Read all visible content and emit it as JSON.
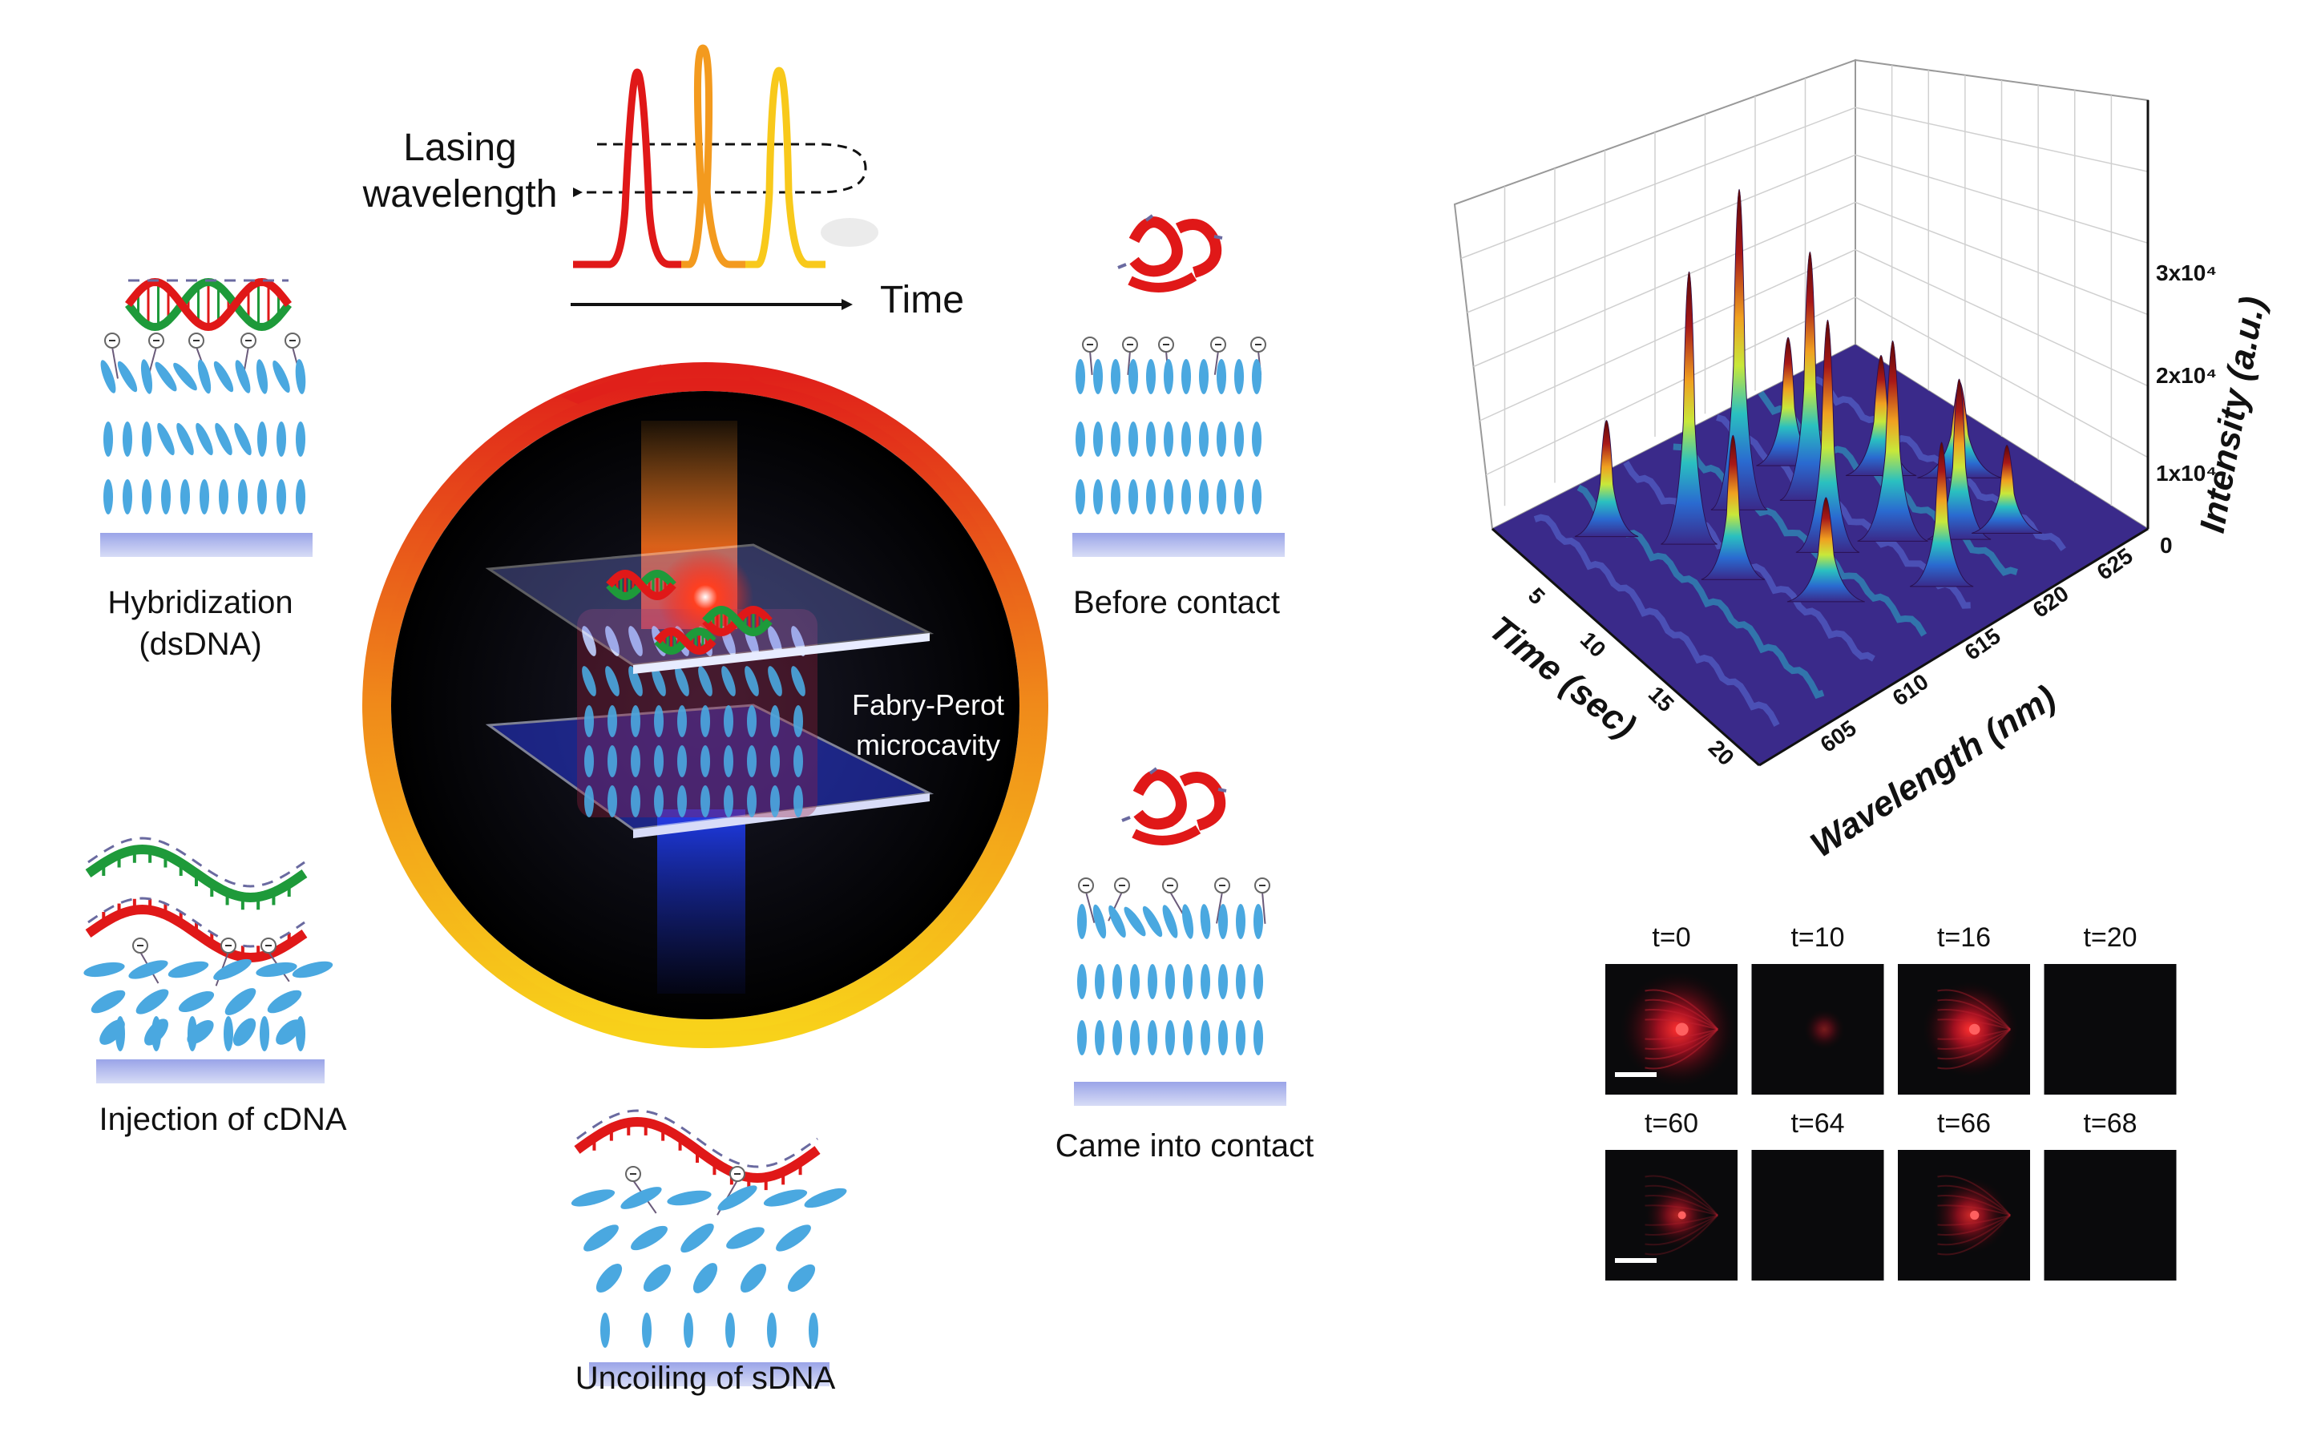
{
  "header": {
    "lasing_wavelength_line1": "Lasing",
    "lasing_wavelength_line2": "wavelength",
    "time_label": "Time"
  },
  "cycle_steps": {
    "hybridization_line1": "Hybridization",
    "hybridization_line2": "(dsDNA)",
    "before_contact": "Before contact",
    "came_into_contact": "Came into contact",
    "uncoiling": "Uncoiling of sDNA",
    "injection": "Injection of cDNA"
  },
  "cavity": {
    "label_line1": "Fabry-Perot",
    "label_line2": "microcavity"
  },
  "plot3d": {
    "z_axis_title": "Intensity (a.u.)",
    "z_ticks": [
      "0",
      "1x10⁴",
      "2x10⁴",
      "3x10⁴"
    ],
    "time_axis_title": "Time (sec)",
    "time_ticks": [
      "5",
      "10",
      "15",
      "20"
    ],
    "wavelength_axis_title": "Wavelength (nm)",
    "wavelength_ticks": [
      "605",
      "610",
      "615",
      "620",
      "625"
    ]
  },
  "snapshots": {
    "labels": [
      "t=0",
      "t=10",
      "t=16",
      "t=20",
      "t=60",
      "t=64",
      "t=66",
      "t=68"
    ],
    "brightness": [
      1.0,
      0.25,
      0.8,
      0.0,
      0.5,
      0.0,
      0.6,
      0.0
    ]
  },
  "colors": {
    "red": "#e01818",
    "orange": "#f39a1e",
    "yellow": "#f8c91b",
    "green": "#1e9a3a",
    "lc_blue": "#4aa8e0",
    "substrate": "#b9c2ee",
    "floor": "#3a2a8a"
  }
}
